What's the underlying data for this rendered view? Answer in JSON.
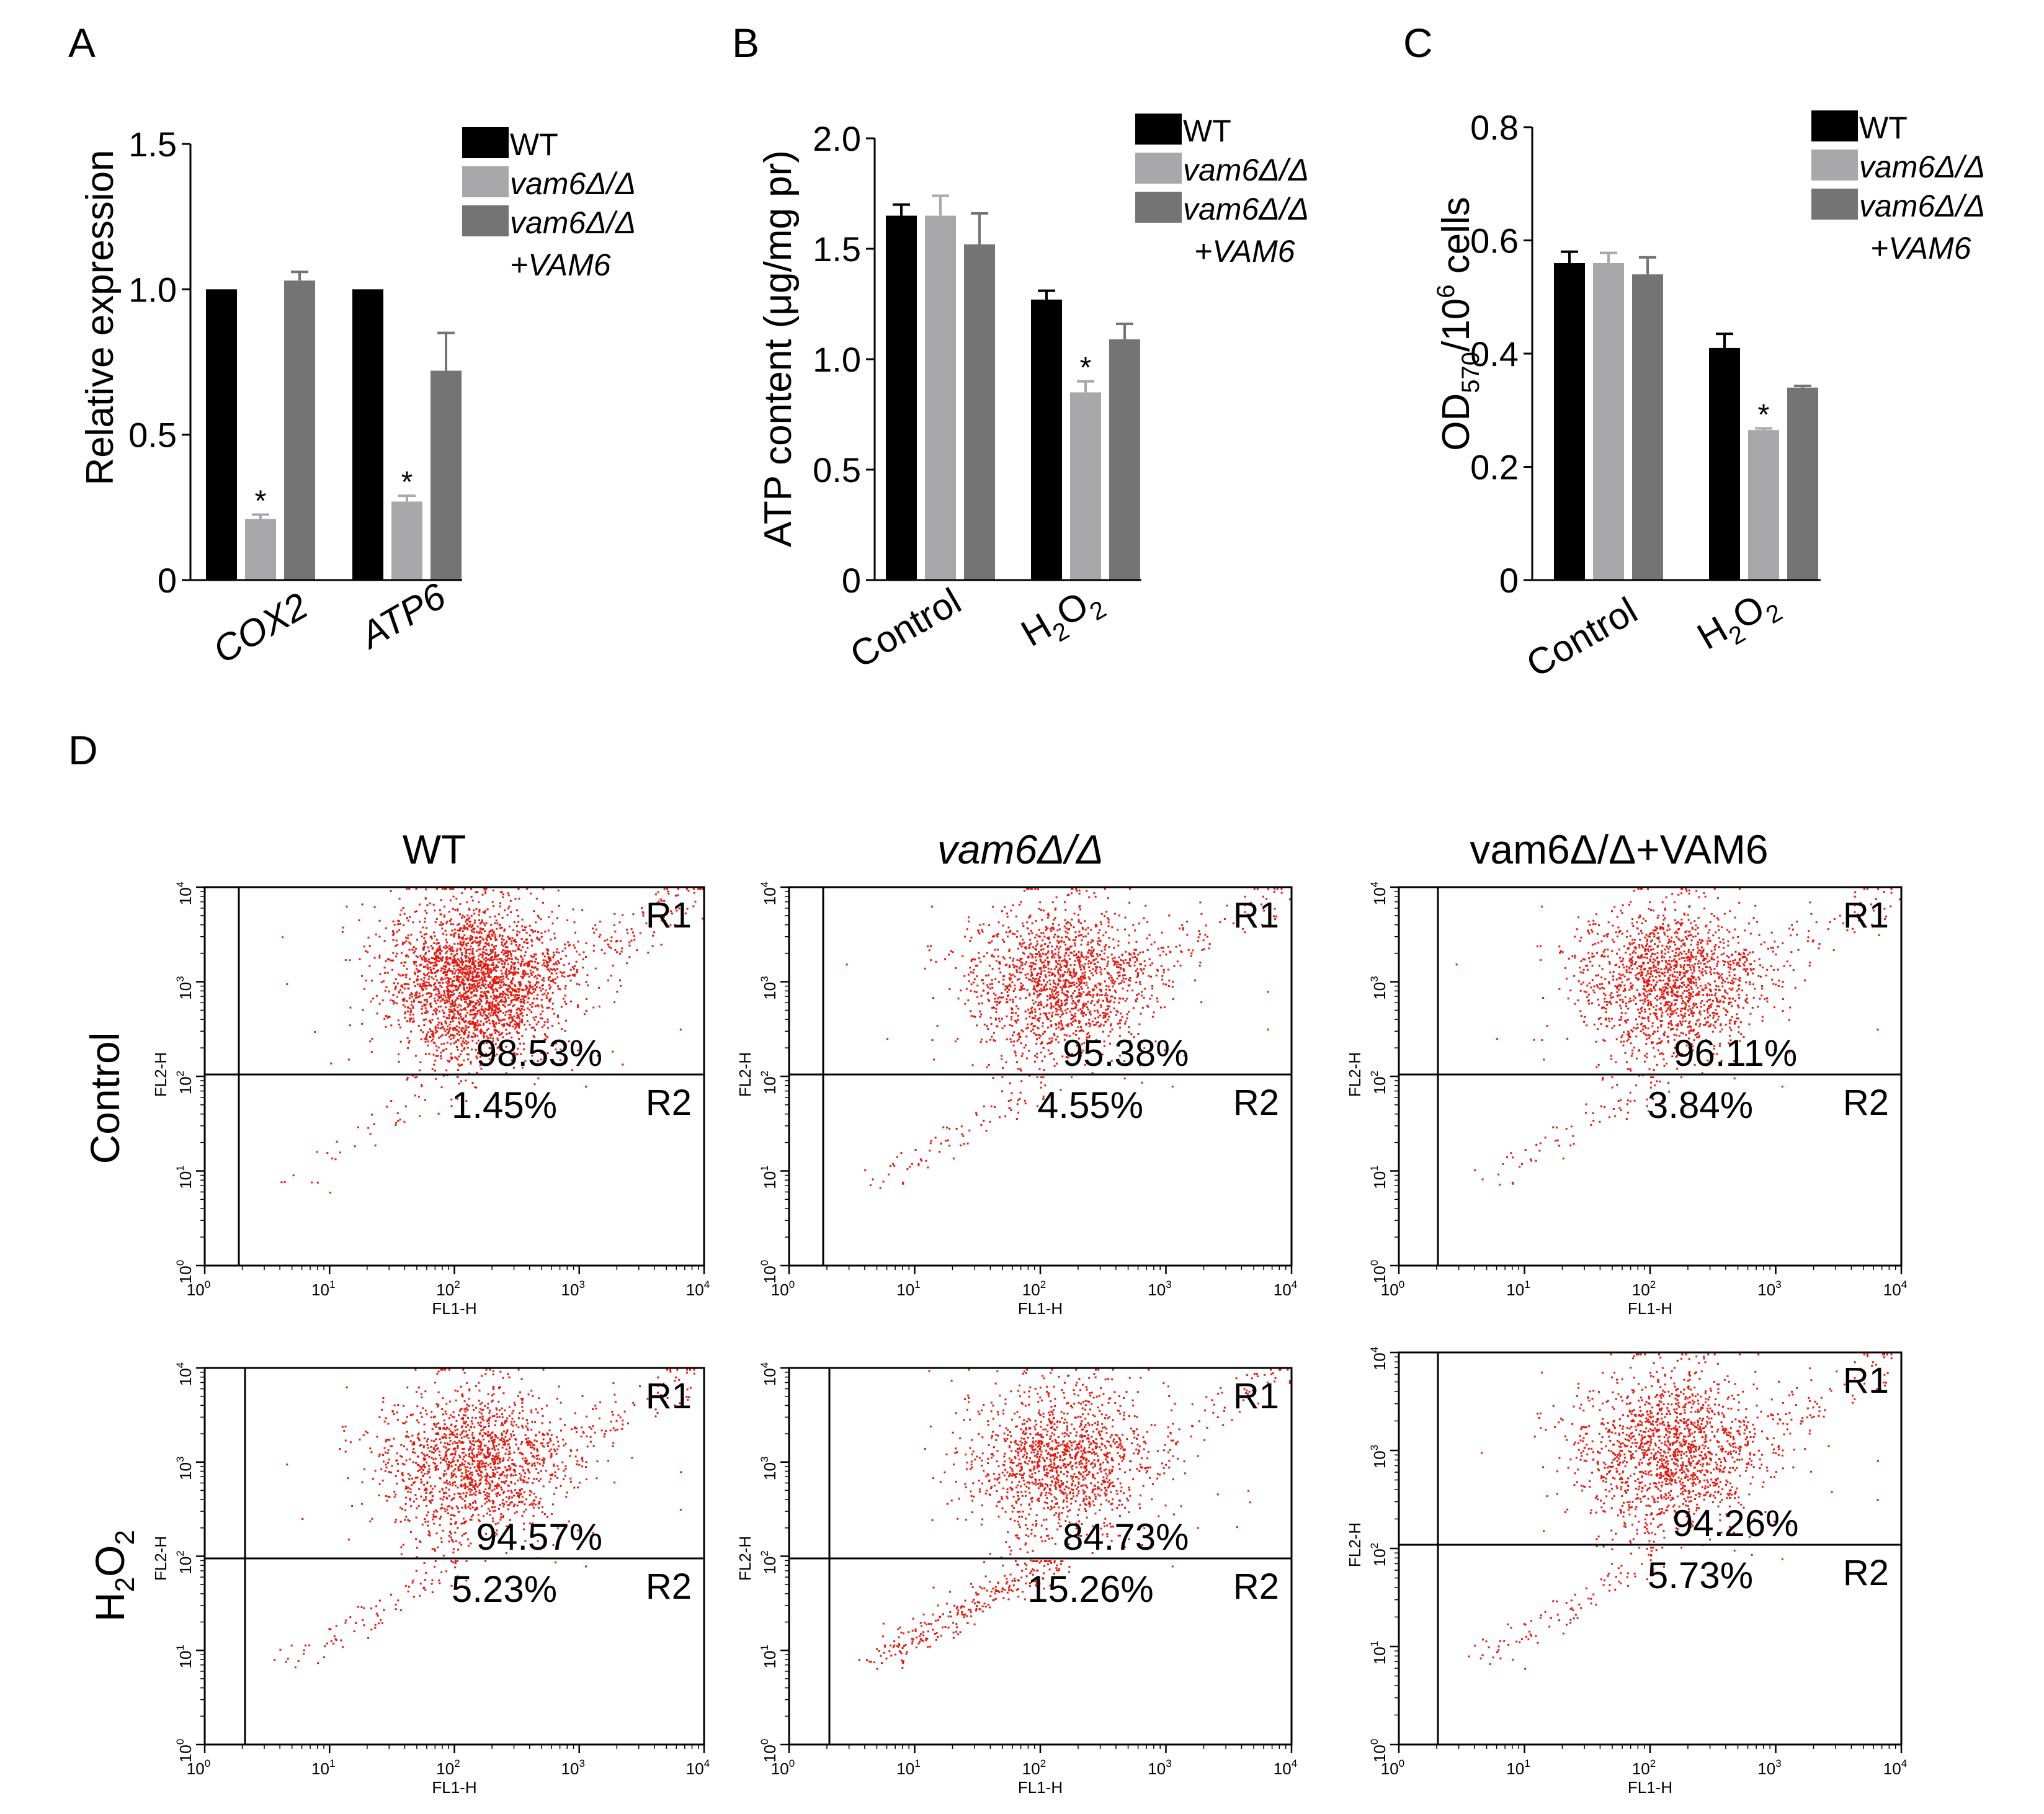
{
  "colors": {
    "wt": "#000000",
    "vam6": "#a8a8aa",
    "rescue": "#747474",
    "dots": "#e8160c"
  },
  "legend": {
    "wt": "WT",
    "vam6": "vam6Δ/Δ",
    "rescue_line1": "vam6Δ/Δ",
    "rescue_line2": "+VAM6"
  },
  "panels": {
    "A": {
      "letter": "A",
      "ylabel": "Relative expression",
      "yticks": [
        "0",
        "0.5",
        "1.0",
        "1.5"
      ]
    },
    "B": {
      "letter": "B",
      "ylabel": "ATP content (μg/mg pr)",
      "yticks": [
        "0",
        "0.5",
        "1.0",
        "1.5",
        "2.0"
      ]
    },
    "C": {
      "letter": "C",
      "ylabel_main": "OD",
      "ylabel_sub": "570",
      "ylabel_mid": "/10",
      "ylabel_sup": "6",
      "ylabel_end": " cells",
      "yticks": [
        "0",
        "0.2",
        "0.4",
        "0.6",
        "0.8"
      ]
    },
    "D": {
      "letter": "D"
    }
  },
  "chart_data": [
    {
      "type": "bar",
      "panel": "A",
      "categories": [
        "COX2",
        "ATP6"
      ],
      "series": [
        {
          "name": "WT",
          "values": [
            1.0,
            1.0
          ],
          "errors": [
            0,
            0
          ]
        },
        {
          "name": "vam6Δ/Δ",
          "values": [
            0.21,
            0.27
          ],
          "errors": [
            0.015,
            0.02
          ]
        },
        {
          "name": "vam6Δ/Δ +VAM6",
          "values": [
            1.03,
            0.72
          ],
          "errors": [
            0.03,
            0.13
          ]
        }
      ],
      "significance": [
        [
          "",
          "*",
          ""
        ],
        [
          "",
          "*",
          ""
        ]
      ],
      "ylabel": "Relative expression",
      "ylim": [
        0,
        1.5
      ],
      "legend": "top-right"
    },
    {
      "type": "bar",
      "panel": "B",
      "categories": [
        "Control",
        "H2O2"
      ],
      "series": [
        {
          "name": "WT",
          "values": [
            1.65,
            1.27
          ],
          "errors": [
            0.05,
            0.04
          ]
        },
        {
          "name": "vam6Δ/Δ",
          "values": [
            1.65,
            0.85
          ],
          "errors": [
            0.09,
            0.05
          ]
        },
        {
          "name": "vam6Δ/Δ +VAM6",
          "values": [
            1.52,
            1.09
          ],
          "errors": [
            0.14,
            0.07
          ]
        }
      ],
      "significance": [
        [
          "",
          "",
          ""
        ],
        [
          "",
          "*",
          ""
        ]
      ],
      "ylabel": "ATP content (μg/mg pr)",
      "ylim": [
        0,
        2.0
      ],
      "legend": "top-right"
    },
    {
      "type": "bar",
      "panel": "C",
      "categories": [
        "Control",
        "H2O2"
      ],
      "series": [
        {
          "name": "WT",
          "values": [
            0.56,
            0.41
          ],
          "errors": [
            0.02,
            0.025
          ]
        },
        {
          "name": "vam6Δ/Δ",
          "values": [
            0.56,
            0.265
          ],
          "errors": [
            0.018,
            0.003
          ]
        },
        {
          "name": "vam6Δ/Δ +VAM6",
          "values": [
            0.54,
            0.34
          ],
          "errors": [
            0.03,
            0.003
          ]
        }
      ],
      "significance": [
        [
          "",
          "",
          ""
        ],
        [
          "",
          "*",
          ""
        ]
      ],
      "ylabel": "OD570/10^6 cells",
      "ylim": [
        0,
        0.8
      ],
      "legend": "top-right"
    },
    {
      "type": "scatter",
      "panel": "D",
      "kind": "flow-cytometry",
      "x_axis": "FL1-H",
      "y_axis": "FL2-H",
      "xlim": [
        1,
        10000
      ],
      "ylim": [
        1,
        10000
      ],
      "log_scale": true,
      "columns": [
        "WT",
        "vam6Δ/Δ",
        "vam6Δ/Δ+VAM6"
      ],
      "rows": [
        "Control",
        "H2O2"
      ],
      "regions": [
        "R1",
        "R2"
      ],
      "plots": [
        {
          "row": "Control",
          "column": "WT",
          "R1": "98.53%",
          "R2": "1.45%"
        },
        {
          "row": "Control",
          "column": "vam6Δ/Δ",
          "R1": "95.38%",
          "R2": "4.55%"
        },
        {
          "row": "Control",
          "column": "vam6Δ/Δ+VAM6",
          "R1": "96.11%",
          "R2": "3.84%"
        },
        {
          "row": "H2O2",
          "column": "WT",
          "R1": "94.57%",
          "R2": "5.23%"
        },
        {
          "row": "H2O2",
          "column": "vam6Δ/Δ",
          "R1": "84.73%",
          "R2": "15.26%"
        },
        {
          "row": "H2O2",
          "column": "vam6Δ/Δ+VAM6",
          "R1": "94.26%",
          "R2": "5.73%"
        }
      ]
    }
  ],
  "flow": {
    "col_titles": [
      "WT",
      "vam6Δ/Δ",
      "vam6Δ/Δ+VAM6"
    ],
    "row_control": "Control",
    "row_h2o2_main": "H",
    "row_h2o2_sub1": "2",
    "row_h2o2_mid": "O",
    "row_h2o2_sub2": "2",
    "xlabel": "FL1-H",
    "ylabel": "FL2-H",
    "tick_base": "10",
    "tick_exps": [
      "0",
      "1",
      "2",
      "3",
      "4"
    ],
    "region_r1": "R1",
    "region_r2": "R2"
  },
  "cat_labels": {
    "A": [
      "COX2",
      "ATP6"
    ],
    "B": [
      "Control",
      "H2O2"
    ],
    "C": [
      "Control",
      "H2O2"
    ]
  },
  "star": "*"
}
